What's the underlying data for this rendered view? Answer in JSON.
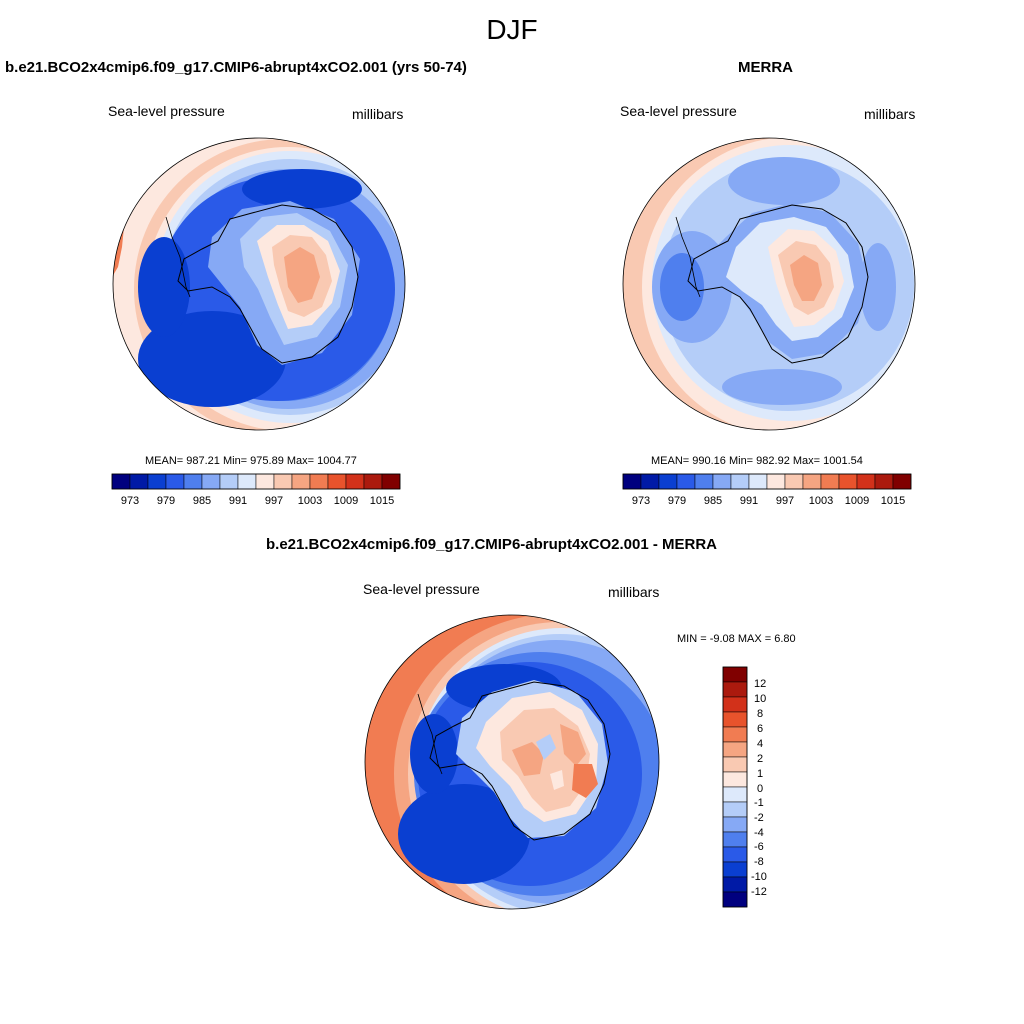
{
  "figure": {
    "title": "DJF"
  },
  "panels": [
    {
      "title": "b.e21.BCO2x4cmip6.f09_g17.CMIP6-abrupt4xCO2.001 (yrs 50-74)",
      "variable": "Sea-level pressure",
      "units": "millibars",
      "stats": "MEAN= 987.21  Min= 975.89  Max= 1004.77",
      "colorbar_ticks": [
        "973",
        "979",
        "985",
        "991",
        "997",
        "1003",
        "1009",
        "1015"
      ]
    },
    {
      "title": "MERRA",
      "variable": "Sea-level pressure",
      "units": "millibars",
      "stats": "MEAN= 990.16  Min= 982.92  Max= 1001.54",
      "colorbar_ticks": [
        "973",
        "979",
        "985",
        "991",
        "997",
        "1003",
        "1009",
        "1015"
      ]
    },
    {
      "title": "b.e21.BCO2x4cmip6.f09_g17.CMIP6-abrupt4xCO2.001 - MERRA",
      "variable": "Sea-level pressure",
      "units": "millibars",
      "stats": "MIN =  -9.08 MAX =   6.80",
      "colorbar_ticks": [
        "12",
        "10",
        "8",
        "6",
        "4",
        "2",
        "1",
        "0",
        "-1",
        "-2",
        "-4",
        "-6",
        "-8",
        "-10",
        "-12"
      ]
    }
  ],
  "colors": {
    "pressure_scale": [
      "#00007f",
      "#001aa6",
      "#0a3fd1",
      "#2a5ae8",
      "#4f7fee",
      "#86a9f5",
      "#b4cdf8",
      "#dde9fb",
      "#fde8df",
      "#f9c9b2",
      "#f5a582",
      "#f17c52",
      "#e8532c",
      "#d2311a",
      "#ab1a0e",
      "#800000"
    ],
    "anomaly_scale": [
      "#800000",
      "#ab1a0e",
      "#d2311a",
      "#e8532c",
      "#f17c52",
      "#f5a582",
      "#f9c9b2",
      "#fde8df",
      "#dde9fb",
      "#b4cdf8",
      "#86a9f5",
      "#4f7fee",
      "#2a5ae8",
      "#0a3fd1",
      "#001aa6",
      "#00007f"
    ]
  }
}
